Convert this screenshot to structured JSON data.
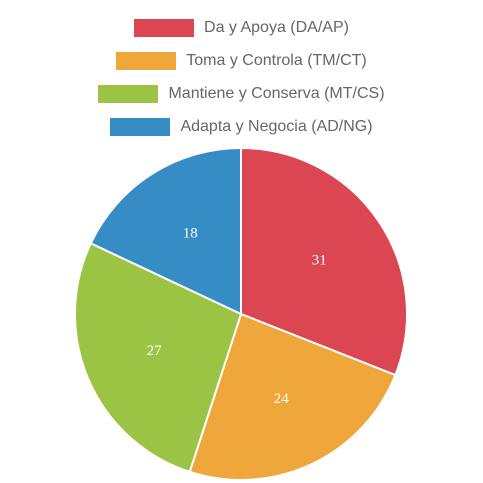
{
  "chart_data": {
    "type": "pie",
    "categories": [
      "Da y Apoya (DA/AP)",
      "Toma y Controla (TM/CT)",
      "Mantiene y Conserva (MT/CS)",
      "Adapta y Negocia (AD/NG)"
    ],
    "values": [
      31,
      24,
      27,
      18
    ],
    "colors": [
      "#dc4653",
      "#efa73c",
      "#9bc444",
      "#368dc6"
    ]
  }
}
